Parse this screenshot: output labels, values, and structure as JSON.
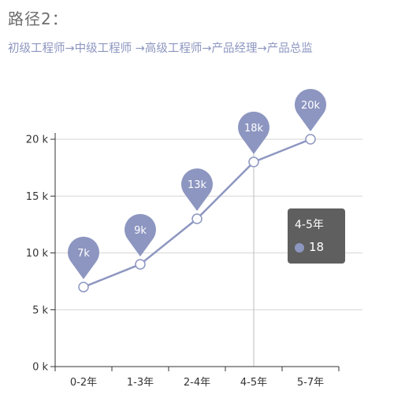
{
  "page": {
    "title": "路径2：",
    "path": "初级工程师→中级工程师 →高级工程师→产品经理→产品总监"
  },
  "colors": {
    "series": "#8d96c0",
    "grid": "#d6d6d6",
    "axis": "#333333",
    "tooltip_bg": "#5f5f5f"
  },
  "chart_data": {
    "type": "line",
    "categories": [
      "0-2年",
      "1-3年",
      "2-4年",
      "4-5年",
      "5-7年"
    ],
    "series": [
      {
        "values": [
          7,
          9,
          13,
          18,
          20
        ],
        "point_labels": [
          "7k",
          "9k",
          "13k",
          "18k",
          "20k"
        ]
      }
    ],
    "yticks": [
      0,
      5,
      10,
      15,
      20
    ],
    "ytick_labels": [
      "0 k",
      "5 k",
      "10 k",
      "15 k",
      "20 k"
    ],
    "ylim": [
      0,
      20
    ],
    "grid": true,
    "tooltip": {
      "category": "4-5年",
      "value": "18"
    }
  }
}
